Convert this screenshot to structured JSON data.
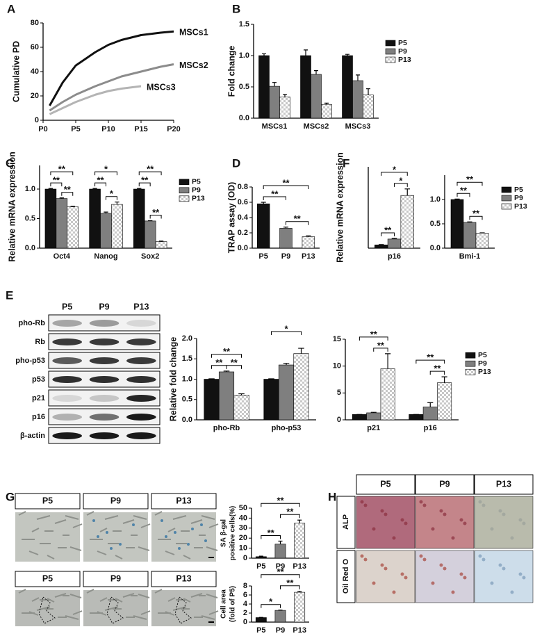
{
  "panel_labels": [
    "A",
    "B",
    "C",
    "D",
    "E",
    "F",
    "G",
    "H"
  ],
  "chart_data": [
    {
      "type": "line",
      "ylabel": "Cumulative PD",
      "x": [
        1,
        3,
        5,
        8,
        10,
        12,
        15,
        18,
        20
      ],
      "series": [
        {
          "name": "MSCs1",
          "color": "#111111",
          "values": [
            12,
            31,
            45,
            56,
            62,
            66,
            70,
            72,
            73
          ]
        },
        {
          "name": "MSCs2",
          "color": "#8c8c8c",
          "values": [
            8,
            15,
            21,
            28,
            32,
            36,
            40,
            44,
            46
          ]
        },
        {
          "name": "MSCs3",
          "color": "#b4b4b4",
          "values": [
            5,
            10,
            15,
            21,
            24,
            26,
            28,
            null,
            null
          ]
        }
      ],
      "xlim": [
        0,
        20
      ],
      "xticks": [
        {
          "value": 0,
          "label": "P0"
        },
        {
          "value": 5,
          "label": "P5"
        },
        {
          "value": 10,
          "label": "P10"
        },
        {
          "value": 15,
          "label": "P15"
        },
        {
          "value": 20,
          "label": "P20"
        }
      ],
      "ylim": [
        0,
        80
      ],
      "yticks": [
        0,
        20,
        40,
        60,
        80
      ]
    },
    {
      "type": "bar",
      "ylabel": "Fold change",
      "categories": [
        "MSCs1",
        "MSCs2",
        "MSCs3"
      ],
      "series": [
        {
          "name": "P5",
          "color": "#111111",
          "values": [
            1.0,
            1.0,
            1.0
          ],
          "errors": [
            0.03,
            0.09,
            0.02
          ]
        },
        {
          "name": "P9",
          "color": "#7f7f7f",
          "values": [
            0.51,
            0.7,
            0.6
          ],
          "errors": [
            0.06,
            0.06,
            0.09
          ]
        },
        {
          "name": "P13",
          "color": "#c8c8c8",
          "values": [
            0.34,
            0.22,
            0.37
          ],
          "errors": [
            0.04,
            0.02,
            0.1
          ]
        }
      ],
      "checker_color": "#c8c8c8",
      "legend": "right",
      "ylim": [
        0,
        1.5
      ],
      "yticks": [
        {
          "value": 0,
          "label": "0.0"
        },
        0.5,
        {
          "value": 1,
          "label": "1.0"
        },
        1.5
      ]
    },
    {
      "type": "bar",
      "ylabel": "Relative mRNA expression",
      "categories": [
        "Oct4",
        "Nanog",
        "Sox2"
      ],
      "series": [
        {
          "name": "P5",
          "color": "#111111",
          "values": [
            1.0,
            1.0,
            1.0
          ],
          "errors": [
            0.01,
            0.01,
            0.01
          ]
        },
        {
          "name": "P9",
          "color": "#7f7f7f",
          "values": [
            0.84,
            0.59,
            0.46
          ],
          "errors": [
            0.01,
            0.02,
            0.005
          ]
        },
        {
          "name": "P13",
          "color": "#c8c8c8",
          "values": [
            0.7,
            0.74,
            0.11
          ],
          "errors": [
            0.01,
            0.04,
            0.01
          ]
        }
      ],
      "checker_color": "#c8c8c8",
      "legend": "right",
      "significance": [
        {
          "category": "Oct4",
          "between": [
            "P5",
            "P9"
          ],
          "label": "**"
        },
        {
          "category": "Oct4",
          "between": [
            "P9",
            "P13"
          ],
          "label": "**"
        },
        {
          "category": "Oct4",
          "between": [
            "P5",
            "P13"
          ],
          "label": "**"
        },
        {
          "category": "Nanog",
          "between": [
            "P5",
            "P9"
          ],
          "label": "**"
        },
        {
          "category": "Nanog",
          "between": [
            "P9",
            "P13"
          ],
          "label": "*"
        },
        {
          "category": "Nanog",
          "between": [
            "P5",
            "P13"
          ],
          "label": "*"
        },
        {
          "category": "Sox2",
          "between": [
            "P5",
            "P9"
          ],
          "label": "**"
        },
        {
          "category": "Sox2",
          "between": [
            "P9",
            "P13"
          ],
          "label": "**"
        },
        {
          "category": "Sox2",
          "between": [
            "P5",
            "P13"
          ],
          "label": "**"
        }
      ],
      "ylim": [
        0,
        1.4
      ],
      "yticks": [
        {
          "value": 0,
          "label": "0.0"
        },
        0.5,
        {
          "value": 1,
          "label": "1.0"
        }
      ]
    },
    {
      "type": "bar",
      "ylabel": "TRAP assay (OD)",
      "categories": [
        "P5",
        "P9",
        "P13"
      ],
      "values": [
        0.58,
        0.26,
        0.15
      ],
      "errors": [
        0.02,
        0.015,
        0.01
      ],
      "colors": [
        "#111111",
        "#7f7f7f",
        "#c8c8c8"
      ],
      "checker_color": "#c8c8c8",
      "significance": [
        {
          "between": [
            "P5",
            "P9"
          ],
          "label": "**"
        },
        {
          "between": [
            "P9",
            "P13"
          ],
          "label": "**"
        },
        {
          "between": [
            "P5",
            "P13"
          ],
          "label": "**"
        }
      ],
      "ylim": [
        0,
        0.8
      ],
      "yticks": [
        {
          "value": 0,
          "label": "0.0"
        },
        0.2,
        0.4,
        0.6,
        0.8
      ]
    },
    {
      "type": "bar",
      "ylabel": "Relative mRNA expression",
      "categories": [
        "p16"
      ],
      "series": [
        {
          "name": "P5",
          "color": "#111111",
          "values": [
            1.0
          ],
          "errors": [
            0.1
          ]
        },
        {
          "name": "P9",
          "color": "#7f7f7f",
          "values": [
            2.8
          ],
          "errors": [
            0.2
          ]
        },
        {
          "name": "P13",
          "color": "#c8c8c8",
          "values": [
            16.2
          ],
          "errors": [
            2.0
          ]
        }
      ],
      "checker_color": "#c8c8c8",
      "significance": [
        {
          "category": "p16",
          "between": [
            "P5",
            "P9"
          ],
          "label": "**"
        },
        {
          "category": "p16",
          "between": [
            "P9",
            "P13"
          ],
          "label": "*"
        },
        {
          "category": "p16",
          "between": [
            "P5",
            "P13"
          ],
          "label": "*"
        }
      ],
      "ylim": [
        0,
        25
      ]
    },
    {
      "type": "bar",
      "categories": [
        "Bmi-1"
      ],
      "series": [
        {
          "name": "P5",
          "color": "#111111",
          "values": [
            1.0
          ],
          "errors": [
            0.01
          ]
        },
        {
          "name": "P9",
          "color": "#7f7f7f",
          "values": [
            0.53
          ],
          "errors": [
            0.01
          ]
        },
        {
          "name": "P13",
          "color": "#c8c8c8",
          "values": [
            0.31
          ],
          "errors": [
            0.005
          ]
        }
      ],
      "checker_color": "#c8c8c8",
      "legend": "right",
      "significance": [
        {
          "category": "Bmi-1",
          "between": [
            "P5",
            "P9"
          ],
          "label": "**"
        },
        {
          "category": "Bmi-1",
          "between": [
            "P9",
            "P13"
          ],
          "label": "**"
        },
        {
          "category": "Bmi-1",
          "between": [
            "P5",
            "P13"
          ],
          "label": "**"
        }
      ],
      "ylim": [
        0,
        1.5
      ],
      "yticks": [
        {
          "value": 0,
          "label": "0.0"
        },
        0.5,
        {
          "value": 1,
          "label": "1.0"
        }
      ]
    },
    {
      "type": "bar",
      "ylabel": "Relative fold change",
      "categories": [
        "pho-Rb",
        "pho-p53"
      ],
      "series": [
        {
          "name": "P5",
          "color": "#111111",
          "values": [
            1.0,
            1.0
          ],
          "errors": [
            0.01,
            0.01
          ]
        },
        {
          "name": "P9",
          "color": "#7f7f7f",
          "values": [
            1.18,
            1.35
          ],
          "errors": [
            0.02,
            0.04
          ]
        },
        {
          "name": "P13",
          "color": "#c8c8c8",
          "values": [
            0.61,
            1.63
          ],
          "errors": [
            0.03,
            0.13
          ]
        }
      ],
      "checker_color": "#c8c8c8",
      "significance": [
        {
          "category": "pho-Rb",
          "between": [
            "P5",
            "P9"
          ],
          "label": "**"
        },
        {
          "category": "pho-Rb",
          "between": [
            "P9",
            "P13"
          ],
          "label": "**"
        },
        {
          "category": "pho-Rb",
          "between": [
            "P5",
            "P13"
          ],
          "label": "**"
        },
        {
          "category": "pho-p53",
          "between": [
            "P5",
            "P13"
          ],
          "label": "*"
        }
      ],
      "ylim": [
        0,
        2
      ],
      "yticks": [
        {
          "value": 0,
          "label": "0.0"
        },
        0.5,
        {
          "value": 1,
          "label": "1.0"
        },
        1.5,
        {
          "value": 2,
          "label": "2.0"
        }
      ]
    },
    {
      "type": "bar",
      "categories": [
        "p21",
        "p16"
      ],
      "series": [
        {
          "name": "P5",
          "color": "#111111",
          "values": [
            1.0,
            1.0
          ],
          "errors": [
            0,
            0
          ]
        },
        {
          "name": "P9",
          "color": "#7f7f7f",
          "values": [
            1.3,
            2.4
          ],
          "errors": [
            0.1,
            0.8
          ]
        },
        {
          "name": "P13",
          "color": "#c8c8c8",
          "values": [
            9.5,
            6.9
          ],
          "errors": [
            2.8,
            1.1
          ]
        }
      ],
      "checker_color": "#c8c8c8",
      "legend": "right",
      "significance": [
        {
          "category": "p21",
          "between": [
            "P9",
            "P13"
          ],
          "label": "**"
        },
        {
          "category": "p21",
          "between": [
            "P5",
            "P13"
          ],
          "label": "**"
        },
        {
          "category": "p16",
          "between": [
            "P9",
            "P13"
          ],
          "label": "**"
        },
        {
          "category": "p16",
          "between": [
            "P5",
            "P13"
          ],
          "label": "**"
        }
      ],
      "ylim": [
        0,
        15
      ],
      "yticks": [
        0,
        5,
        10,
        15
      ]
    },
    {
      "type": "bar",
      "ylabel": [
        "SA β-gal",
        "positive cells(%)"
      ],
      "categories": [
        "P5",
        "P9",
        "P13"
      ],
      "values": [
        1.5,
        14,
        35
      ],
      "errors": [
        0.5,
        3,
        3
      ],
      "colors": [
        "#111111",
        "#7f7f7f",
        "#c8c8c8"
      ],
      "checker_color": "#c8c8c8",
      "significance": [
        {
          "between": [
            "P5",
            "P9"
          ],
          "label": "**"
        },
        {
          "between": [
            "P9",
            "P13"
          ],
          "label": "**"
        },
        {
          "between": [
            "P5",
            "P13"
          ],
          "label": "**"
        }
      ],
      "ylim": [
        0,
        50
      ],
      "yticks": [
        0,
        10,
        20,
        30,
        40,
        50
      ]
    },
    {
      "type": "bar",
      "ylabel": [
        "Cell area",
        "(fold of P5)"
      ],
      "categories": [
        "P5",
        "P9",
        "P13"
      ],
      "values": [
        1.0,
        2.6,
        6.6
      ],
      "errors": [
        0.05,
        0.05,
        0.2
      ],
      "colors": [
        "#111111",
        "#7f7f7f",
        "#c8c8c8"
      ],
      "checker_color": "#c8c8c8",
      "significance": [
        {
          "between": [
            "P5",
            "P9"
          ],
          "label": "*"
        },
        {
          "between": [
            "P9",
            "P13"
          ],
          "label": "**"
        },
        {
          "between": [
            "P5",
            "P13"
          ],
          "label": "**"
        }
      ],
      "ylim": [
        0,
        8
      ],
      "yticks": [
        0,
        2,
        4,
        6,
        8
      ]
    }
  ],
  "blot": {
    "columns": [
      "P5",
      "P9",
      "P13"
    ],
    "rows": [
      "pho-Rb",
      "Rb",
      "pho-p53",
      "p53",
      "p21",
      "p16",
      "β-actin"
    ]
  },
  "micrographs": {
    "headers": [
      [
        "P5",
        "P9",
        "P13"
      ],
      [
        "P5",
        "P9",
        "P13"
      ]
    ]
  },
  "staining": {
    "columns": [
      "P5",
      "P9",
      "P13"
    ],
    "rows": [
      "ALP",
      "Oil Red O"
    ]
  }
}
